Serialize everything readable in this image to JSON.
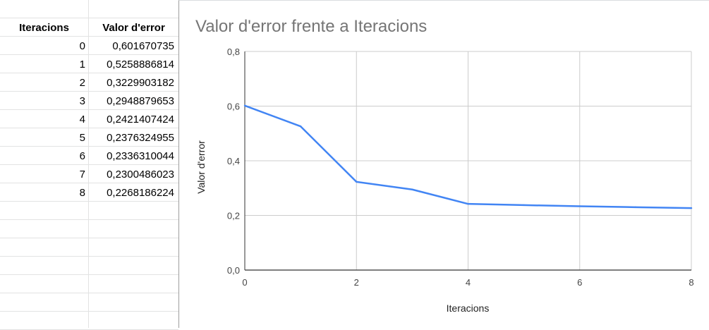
{
  "table": {
    "headers": [
      "Iteracions",
      "Valor d'error"
    ],
    "rows": [
      [
        "0",
        "0,601670735"
      ],
      [
        "1",
        "0,5258886814"
      ],
      [
        "2",
        "0,3229903182"
      ],
      [
        "3",
        "0,2948879653"
      ],
      [
        "4",
        "0,2421407424"
      ],
      [
        "5",
        "0,2376324955"
      ],
      [
        "6",
        "0,2336310044"
      ],
      [
        "7",
        "0,2300486023"
      ],
      [
        "8",
        "0,2268186224"
      ]
    ]
  },
  "chart_data": {
    "type": "line",
    "title": "Valor d'error frente a Iteracions",
    "xlabel": "Iteracions",
    "ylabel": "Valor d'error",
    "x": [
      0,
      1,
      2,
      3,
      4,
      5,
      6,
      7,
      8
    ],
    "series": [
      {
        "values": [
          0.601670735,
          0.5258886814,
          0.3229903182,
          0.2948879653,
          0.2421407424,
          0.2376324955,
          0.2336310044,
          0.2300486023,
          0.2268186224
        ]
      }
    ],
    "xlim": [
      0,
      8
    ],
    "ylim": [
      0,
      0.8
    ],
    "x_ticks": [
      0,
      2,
      4,
      6,
      8
    ],
    "x_tick_labels": [
      "0",
      "2",
      "4",
      "6",
      "8"
    ],
    "y_ticks": [
      0,
      0.2,
      0.4,
      0.6,
      0.8
    ],
    "y_tick_labels": [
      "0,0",
      "0,2",
      "0,4",
      "0,6",
      "0,8"
    ],
    "grid": true,
    "legend": "none",
    "line_color": "#4285f4"
  }
}
